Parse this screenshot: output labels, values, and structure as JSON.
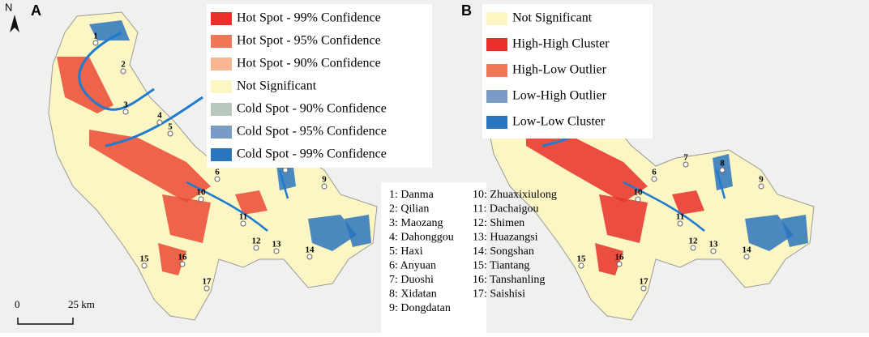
{
  "north": "N",
  "scale_bar": {
    "start": "0",
    "end": "25 km"
  },
  "panels": [
    {
      "label": "A",
      "legend": [
        {
          "label": "Hot Spot - 99% Confidence",
          "color": "#e8302a"
        },
        {
          "label": "Hot Spot - 95% Confidence",
          "color": "#f2775a"
        },
        {
          "label": "Hot Spot - 90% Confidence",
          "color": "#f7b793"
        },
        {
          "label": "Not Significant",
          "color": "#fbf6c3"
        },
        {
          "label": "Cold Spot - 90% Confidence",
          "color": "#b8c8bc"
        },
        {
          "label": "Cold Spot - 95% Confidence",
          "color": "#7a9cc4"
        },
        {
          "label": "Cold Spot - 99% Confidence",
          "color": "#2a74bd"
        }
      ]
    },
    {
      "label": "B",
      "legend": [
        {
          "label": "Not Significant",
          "color": "#fbf6c3"
        },
        {
          "label": "High-High Cluster",
          "color": "#e8302a"
        },
        {
          "label": "High-Low Outlier",
          "color": "#f2775a"
        },
        {
          "label": "Low-High Outlier",
          "color": "#7a9cc4"
        },
        {
          "label": "Low-Low Cluster",
          "color": "#2a74bd"
        }
      ]
    }
  ],
  "map_labels": [
    "1",
    "2",
    "3",
    "4",
    "5",
    "6",
    "7",
    "8",
    "9",
    "10",
    "11",
    "12",
    "13",
    "14",
    "15",
    "16",
    "17"
  ],
  "site_list": [
    "1: Danma",
    "2: Qilian",
    "3: Maozang",
    "4: Dahonggou",
    "5: Haxi",
    "6: Anyuan",
    "7: Duoshi",
    "8: Xidatan",
    "9: Dongdatan",
    "10: Zhuaxixiulong",
    "11: Dachaigou",
    "12: Shimen",
    "13: Huazangsi",
    "14: Songshan",
    "15: Tiantang",
    "16: Tanshanling",
    "17: Saishisi"
  ]
}
